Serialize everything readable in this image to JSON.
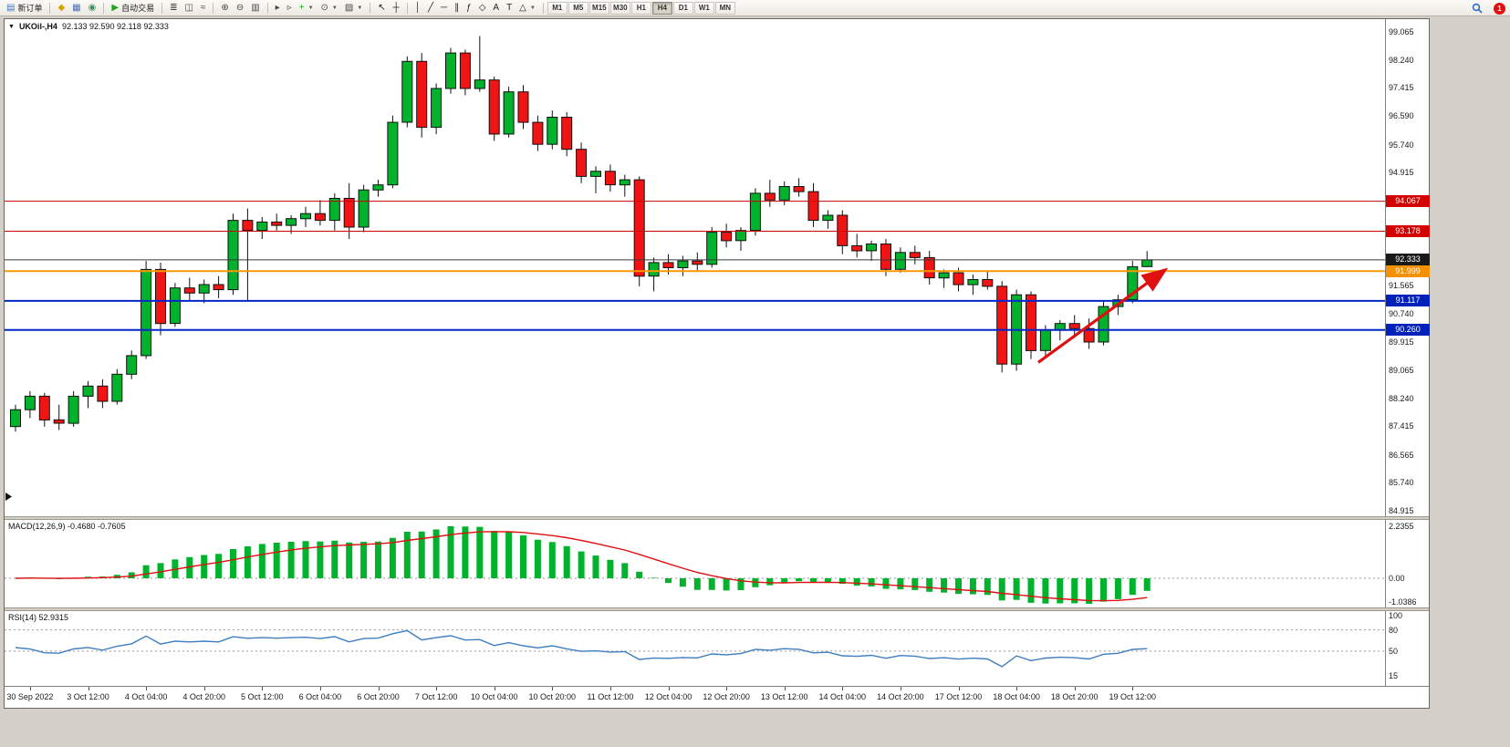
{
  "app": {
    "background": "#D4D0C8"
  },
  "toolbar": {
    "groups": [
      {
        "items": [
          {
            "name": "new-order-button",
            "glyph": "▤",
            "glyph_color": "#3E78C0",
            "label": "新订单"
          }
        ]
      },
      {
        "items": [
          {
            "name": "profile-icon",
            "glyph": "◆",
            "glyph_color": "#D7A300"
          },
          {
            "name": "market-watch-icon",
            "glyph": "▦",
            "glyph_color": "#4A6FB5"
          },
          {
            "name": "data-window-icon",
            "glyph": "◉",
            "glyph_color": "#3E8E5A"
          }
        ]
      },
      {
        "items": [
          {
            "name": "auto-trading-button",
            "glyph": "▶",
            "glyph_color": "#18A818",
            "label": "自动交易"
          }
        ]
      },
      {
        "items": [
          {
            "name": "bar-chart-icon",
            "glyph": "≣",
            "glyph_color": "#444444"
          },
          {
            "name": "candlestick-chart-icon",
            "glyph": "◫",
            "glyph_color": "#444444"
          },
          {
            "name": "line-chart-icon",
            "glyph": "≈",
            "glyph_color": "#444444"
          }
        ]
      },
      {
        "items": [
          {
            "name": "zoom-in-icon",
            "glyph": "⊕",
            "glyph_color": "#444444"
          },
          {
            "name": "zoom-out-icon",
            "glyph": "⊖",
            "glyph_color": "#444444"
          },
          {
            "name": "tile-windows-icon",
            "glyph": "▥",
            "glyph_color": "#444444"
          }
        ]
      },
      {
        "items": [
          {
            "name": "auto-scroll-icon",
            "glyph": "▸",
            "glyph_color": "#444444"
          },
          {
            "name": "chart-shift-icon",
            "glyph": "▹",
            "glyph_color": "#444444"
          },
          {
            "name": "indicators-icon",
            "glyph": "+",
            "glyph_color": "#18A818",
            "caret": true
          },
          {
            "name": "period-icon",
            "glyph": "⊙",
            "glyph_color": "#444444",
            "caret": true
          },
          {
            "name": "templates-icon",
            "glyph": "▨",
            "glyph_color": "#444444",
            "caret": true
          }
        ]
      },
      {
        "items": [
          {
            "name": "cursor-icon",
            "glyph": "↖",
            "glyph_color": "#222222"
          },
          {
            "name": "crosshair-icon",
            "glyph": "┼",
            "glyph_color": "#222222"
          }
        ]
      },
      {
        "items": [
          {
            "name": "vertical-line-icon",
            "glyph": "│",
            "glyph_color": "#222222"
          },
          {
            "name": "trendline-icon",
            "glyph": "╱",
            "glyph_color": "#222222"
          },
          {
            "name": "horizontal-line-icon",
            "glyph": "─",
            "glyph_color": "#222222"
          },
          {
            "name": "channel-icon",
            "glyph": "∥",
            "glyph_color": "#222222"
          },
          {
            "name": "fibonacci-icon",
            "glyph": "ƒ",
            "glyph_color": "#222222"
          },
          {
            "name": "shapes-icon",
            "glyph": "◇",
            "glyph_color": "#222222"
          },
          {
            "name": "text-icon",
            "glyph": "A",
            "glyph_color": "#222222"
          },
          {
            "name": "label-icon",
            "glyph": "T",
            "glyph_color": "#222222"
          },
          {
            "name": "arrows-icon",
            "glyph": "△",
            "glyph_color": "#222222",
            "caret": true
          }
        ]
      }
    ],
    "timeframes": {
      "items": [
        "M1",
        "M5",
        "M15",
        "M30",
        "H1",
        "H4",
        "D1",
        "W1",
        "MN"
      ],
      "active": "H4"
    },
    "right": {
      "notification_label": "1",
      "notification_color": "#E01010",
      "search_icon_color": "#2E6FD0"
    }
  },
  "chart_window": {
    "dropdown_glyph": "▼",
    "symbol": "UKOil-,H4",
    "ohlc": "92.133 92.590 92.118 92.333"
  },
  "chart_data": [
    {
      "type": "candlestick",
      "title": "UKOil-,H4",
      "ohlc_current": {
        "open": "92.133",
        "high": "92.590",
        "low": "92.118",
        "close": "92.333"
      },
      "price_range": [
        84.75,
        99.45
      ],
      "y_axis_ticks": [
        "99.065",
        "98.240",
        "97.415",
        "96.590",
        "95.740",
        "94.915",
        "91.565",
        "90.740",
        "89.915",
        "89.065",
        "88.240",
        "87.415",
        "86.565",
        "85.740",
        "84.915"
      ],
      "x_labels": [
        "30 Sep 2022",
        "3 Oct 12:00",
        "4 Oct 04:00",
        "4 Oct 20:00",
        "5 Oct 12:00",
        "6 Oct 04:00",
        "6 Oct 20:00",
        "7 Oct 12:00",
        "10 Oct 04:00",
        "10 Oct 20:00",
        "11 Oct 12:00",
        "12 Oct 04:00",
        "12 Oct 20:00",
        "13 Oct 12:00",
        "14 Oct 04:00",
        "14 Oct 20:00",
        "17 Oct 12:00",
        "18 Oct 04:00",
        "18 Oct 20:00",
        "19 Oct 12:00"
      ],
      "x_label_start_index": 1,
      "x_label_step": 4,
      "candles": [
        [
          87.4,
          88.05,
          87.25,
          87.9
        ],
        [
          87.9,
          88.45,
          87.65,
          88.3
        ],
        [
          88.3,
          88.4,
          87.4,
          87.6
        ],
        [
          87.6,
          88.05,
          87.3,
          87.5
        ],
        [
          87.5,
          88.45,
          87.4,
          88.3
        ],
        [
          88.3,
          88.75,
          87.95,
          88.6
        ],
        [
          88.6,
          88.8,
          87.95,
          88.15
        ],
        [
          88.15,
          89.1,
          88.05,
          88.95
        ],
        [
          88.95,
          89.65,
          88.8,
          89.5
        ],
        [
          89.5,
          92.3,
          89.4,
          92.05
        ],
        [
          92.05,
          92.25,
          90.1,
          90.45
        ],
        [
          90.45,
          91.65,
          90.35,
          91.5
        ],
        [
          91.5,
          91.8,
          91.1,
          91.35
        ],
        [
          91.35,
          91.75,
          91.05,
          91.6
        ],
        [
          91.6,
          91.85,
          91.2,
          91.45
        ],
        [
          91.45,
          93.7,
          91.3,
          93.5
        ],
        [
          93.5,
          93.85,
          91.1,
          93.2
        ],
        [
          93.2,
          93.6,
          92.95,
          93.45
        ],
        [
          93.45,
          93.7,
          93.2,
          93.35
        ],
        [
          93.35,
          93.65,
          93.1,
          93.55
        ],
        [
          93.55,
          93.9,
          93.3,
          93.7
        ],
        [
          93.7,
          94.1,
          93.35,
          93.5
        ],
        [
          93.5,
          94.3,
          93.2,
          94.15
        ],
        [
          94.15,
          94.6,
          92.95,
          93.3
        ],
        [
          93.3,
          94.55,
          93.15,
          94.4
        ],
        [
          94.4,
          94.7,
          94.2,
          94.55
        ],
        [
          94.55,
          96.6,
          94.45,
          96.4
        ],
        [
          96.4,
          98.35,
          96.25,
          98.2
        ],
        [
          98.2,
          98.45,
          95.95,
          96.25
        ],
        [
          96.25,
          97.55,
          96.05,
          97.4
        ],
        [
          97.4,
          98.6,
          97.25,
          98.45
        ],
        [
          98.45,
          98.55,
          97.2,
          97.4
        ],
        [
          97.4,
          98.95,
          97.3,
          97.65
        ],
        [
          97.65,
          97.75,
          95.85,
          96.05
        ],
        [
          96.05,
          97.45,
          95.95,
          97.3
        ],
        [
          97.3,
          97.5,
          96.2,
          96.4
        ],
        [
          96.4,
          96.6,
          95.55,
          95.75
        ],
        [
          95.75,
          96.75,
          95.6,
          96.55
        ],
        [
          96.55,
          96.7,
          95.4,
          95.6
        ],
        [
          95.6,
          95.8,
          94.6,
          94.8
        ],
        [
          94.8,
          95.1,
          94.3,
          94.95
        ],
        [
          94.95,
          95.15,
          94.35,
          94.55
        ],
        [
          94.55,
          94.85,
          94.2,
          94.7
        ],
        [
          94.7,
          94.8,
          91.55,
          91.85
        ],
        [
          91.85,
          92.4,
          91.4,
          92.25
        ],
        [
          92.25,
          92.5,
          91.9,
          92.1
        ],
        [
          92.1,
          92.45,
          91.85,
          92.3
        ],
        [
          92.3,
          92.55,
          92.0,
          92.2
        ],
        [
          92.2,
          93.3,
          92.1,
          93.15
        ],
        [
          93.15,
          93.4,
          92.7,
          92.9
        ],
        [
          92.9,
          93.3,
          92.6,
          93.2
        ],
        [
          93.2,
          94.45,
          93.05,
          94.3
        ],
        [
          94.3,
          94.7,
          93.9,
          94.1
        ],
        [
          94.1,
          94.65,
          93.95,
          94.5
        ],
        [
          94.5,
          94.75,
          94.2,
          94.35
        ],
        [
          94.35,
          94.6,
          93.3,
          93.5
        ],
        [
          93.5,
          93.8,
          93.25,
          93.65
        ],
        [
          93.65,
          93.8,
          92.5,
          92.75
        ],
        [
          92.75,
          93.1,
          92.4,
          92.6
        ],
        [
          92.6,
          92.9,
          92.3,
          92.8
        ],
        [
          92.8,
          92.95,
          91.85,
          92.05
        ],
        [
          92.05,
          92.7,
          91.95,
          92.55
        ],
        [
          92.55,
          92.75,
          92.2,
          92.4
        ],
        [
          92.4,
          92.6,
          91.6,
          91.8
        ],
        [
          91.8,
          92.05,
          91.5,
          91.95
        ],
        [
          91.95,
          92.1,
          91.4,
          91.6
        ],
        [
          91.6,
          91.9,
          91.3,
          91.75
        ],
        [
          91.75,
          92.0,
          91.45,
          91.55
        ],
        [
          91.55,
          91.7,
          89.0,
          89.25
        ],
        [
          89.25,
          91.45,
          89.05,
          91.3
        ],
        [
          91.3,
          91.4,
          89.4,
          89.65
        ],
        [
          89.65,
          90.4,
          89.5,
          90.25
        ],
        [
          90.25,
          90.55,
          89.95,
          90.45
        ],
        [
          90.45,
          90.7,
          90.1,
          90.3
        ],
        [
          90.3,
          90.6,
          89.7,
          89.9
        ],
        [
          89.9,
          91.1,
          89.8,
          90.95
        ],
        [
          90.95,
          91.3,
          90.7,
          91.15
        ],
        [
          91.15,
          92.3,
          91.05,
          92.13
        ],
        [
          92.133,
          92.59,
          92.118,
          92.333
        ]
      ],
      "hlines": [
        {
          "value": 94.067,
          "color": "#CC0000",
          "width": 1,
          "badge": "94.067",
          "badge_color": "#D40000",
          "name": "resistance-line-94067"
        },
        {
          "value": 93.178,
          "color": "#CC0000",
          "width": 1,
          "badge": "93.178",
          "badge_color": "#D40000",
          "name": "resistance-line-93178"
        },
        {
          "value": 92.333,
          "color": "#3A3A3A",
          "width": 1,
          "badge": "92.333",
          "badge_color": "#1A1A1A",
          "name": "current-price-line"
        },
        {
          "value": 91.999,
          "color": "#FF9800",
          "width": 2,
          "badge": "91.999",
          "badge_color": "#F59000",
          "name": "pivot-line-91999"
        },
        {
          "value": 91.117,
          "color": "#0026CC",
          "width": 2,
          "badge": "91.117",
          "badge_color": "#0022BB",
          "name": "support-line-91117"
        },
        {
          "value": 90.26,
          "color": "#0026CC",
          "width": 2,
          "badge": "90.260",
          "badge_color": "#0022BB",
          "name": "support-line-90260"
        }
      ],
      "arrow": {
        "from_index": 70.5,
        "from_price": 89.3,
        "to_index": 79.2,
        "to_price": 92.02,
        "color": "#E01010"
      },
      "colors": {
        "up": "#00B22C",
        "down": "#F01414",
        "outline": "#101010"
      }
    },
    {
      "type": "macd",
      "label": "MACD(12,26,9) -0.4680 -0.7605",
      "params": [
        12,
        26,
        9
      ],
      "macd_value": "-0.4680",
      "signal_value": "-0.7605",
      "y_ticks": {
        "top": "2.2355",
        "zero": "0.00",
        "bottom": "-1.0386"
      },
      "derived_from": "candles",
      "histogram_color": "#00B22C",
      "signal_color": "#E01010",
      "zero_line_dashed": true
    },
    {
      "type": "rsi",
      "label": "RSI(14) 52.9315",
      "period": 14,
      "value": "52.9315",
      "y_ticks": [
        "100",
        "80",
        "50",
        "15"
      ],
      "dashed_levels": [
        80,
        50
      ],
      "line_color": "#3E7EC1"
    }
  ]
}
